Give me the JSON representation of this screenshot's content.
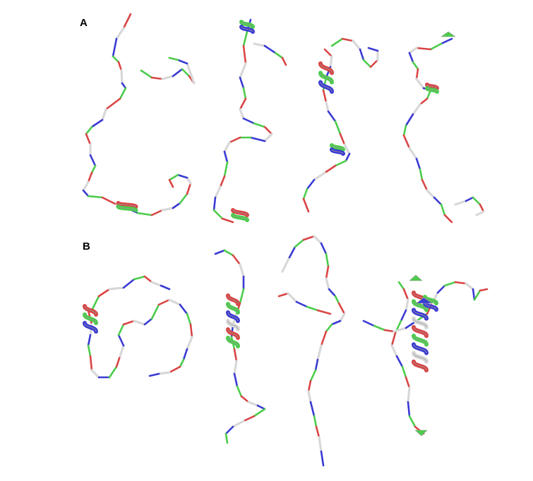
{
  "figure": {
    "panel_a_label": "A",
    "panel_b_label": "B"
  },
  "colors": {
    "red": "#d94545",
    "green": "#4ccc4c",
    "blue": "#3a3ad4",
    "white": "#d8d8d8",
    "outline": "#9a9a9a",
    "background": "#ffffff"
  },
  "panels": [
    {
      "id": "A",
      "structures": [
        {
          "name": "structure-a1",
          "helices": 1
        },
        {
          "name": "structure-a2",
          "helices": 2
        },
        {
          "name": "structure-a3",
          "helices": 2
        },
        {
          "name": "structure-a4",
          "helices": 1
        }
      ]
    },
    {
      "id": "B",
      "structures": [
        {
          "name": "structure-b1",
          "helices": 1
        },
        {
          "name": "structure-b2",
          "helices": 1
        },
        {
          "name": "structure-b3",
          "helices": 0
        },
        {
          "name": "structure-b4",
          "helices": 2
        }
      ]
    }
  ]
}
